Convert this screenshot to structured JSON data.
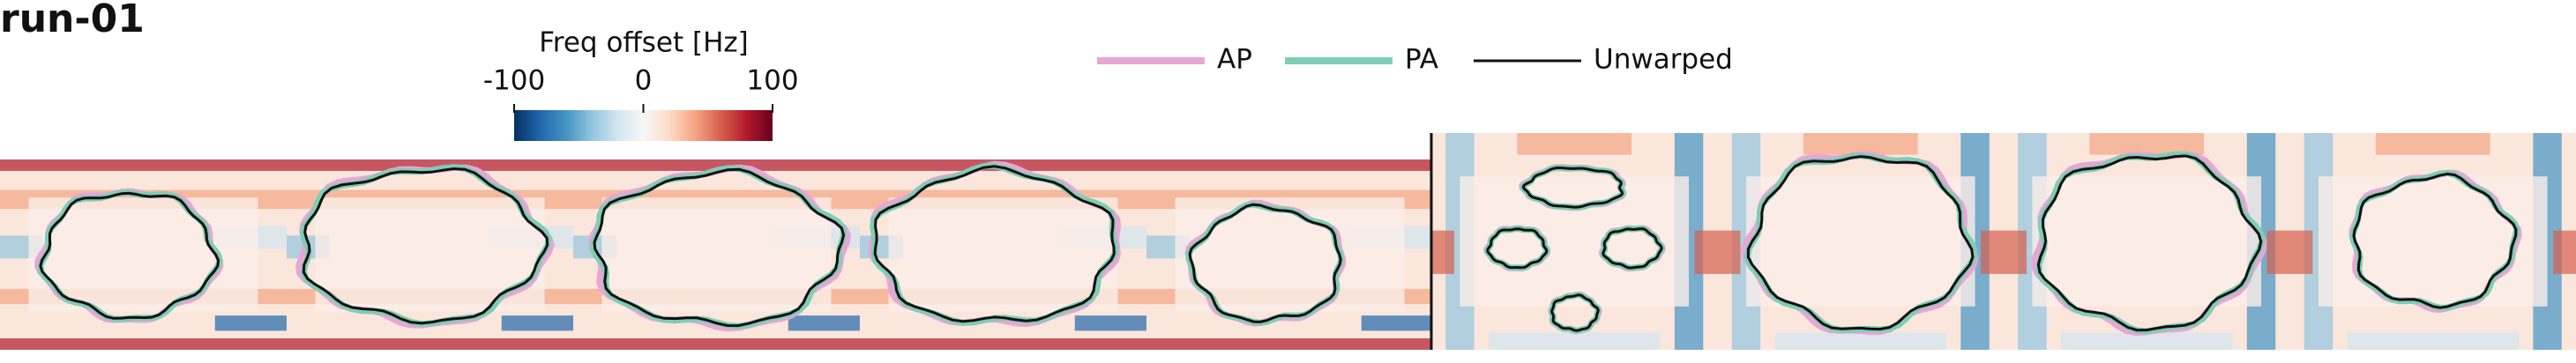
{
  "title": "run-01",
  "colorbar": {
    "label": "Freq offset [Hz]",
    "lim": [
      -100,
      100
    ],
    "ticks": [
      -100,
      0,
      100
    ]
  },
  "legend": [
    {
      "name": "AP",
      "color": "#e8a6d6"
    },
    {
      "name": "PA",
      "color": "#7fcdb4"
    },
    {
      "name": "Unwarped",
      "color": "#111111"
    }
  ]
}
